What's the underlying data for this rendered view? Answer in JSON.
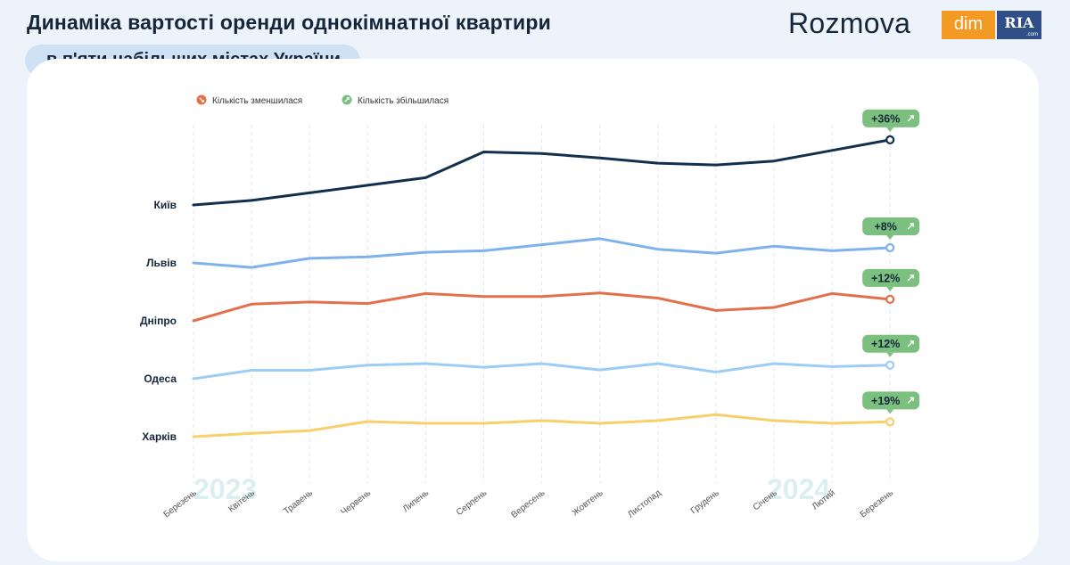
{
  "header": {
    "title_line1": "Динаміка вартості оренди однокімнатної квартири",
    "title_line2": "в п'яти набільших містах України",
    "brand": "Rozmova",
    "partner_logo": {
      "part1": "dim",
      "part2": "RIA",
      "part2_suffix": ".com"
    }
  },
  "chart_data": {
    "type": "line",
    "title": "Динаміка вартості оренди однокімнатної квартири в п'яти набільших містах України",
    "categories": [
      "Березень",
      "Квітень",
      "Травень",
      "Червень",
      "Липень",
      "Серпень",
      "Вересень",
      "Жовтень",
      "Листопад",
      "Грудень",
      "Січень",
      "Лютий",
      "Березень"
    ],
    "year_labels": [
      "2023",
      "2024"
    ],
    "legend": {
      "position": "top-left",
      "items": [
        {
          "label": "Кількість зменшилася",
          "color": "#e2704a",
          "icon": "arrow-down-right-icon"
        },
        {
          "label": "Кількість збільшилася",
          "color": "#7cc07f",
          "icon": "arrow-up-right-icon"
        }
      ]
    },
    "yaxis": {
      "scale": "relative",
      "grid": false
    },
    "xaxis": {
      "grid": true,
      "grid_style": "dashed"
    },
    "series": [
      {
        "name": "Київ",
        "color": "#12304d",
        "change": "+36%",
        "values": [
          0.0,
          1.5,
          4.0,
          6.5,
          9.0,
          17.5,
          17.0,
          15.5,
          13.8,
          13.2,
          14.5,
          18.0,
          21.5
        ]
      },
      {
        "name": "Львів",
        "color": "#7fb1ef",
        "change": "+8%",
        "values": [
          0.0,
          -1.5,
          1.5,
          2.0,
          3.5,
          4.0,
          6.0,
          8.0,
          4.5,
          3.2,
          5.5,
          4.0,
          5.0
        ]
      },
      {
        "name": "Дніпро",
        "color": "#e2704a",
        "change": "+12%",
        "values": [
          0.0,
          5.5,
          6.2,
          5.7,
          9.0,
          8.0,
          8.0,
          9.2,
          7.5,
          3.4,
          4.4,
          9.0,
          7.1
        ]
      },
      {
        "name": "Одеса",
        "color": "#9bcdf6",
        "change": "+12%",
        "values": [
          0.0,
          2.8,
          2.8,
          4.5,
          5.0,
          3.8,
          5.0,
          2.9,
          5.0,
          2.2,
          5.0,
          4.0,
          4.5
        ]
      },
      {
        "name": "Харків",
        "color": "#f8cf6b",
        "change": "+19%",
        "values": [
          0.0,
          1.1,
          2.0,
          5.0,
          4.4,
          4.4,
          5.3,
          4.4,
          5.3,
          7.3,
          5.3,
          4.4,
          4.9
        ]
      }
    ]
  }
}
